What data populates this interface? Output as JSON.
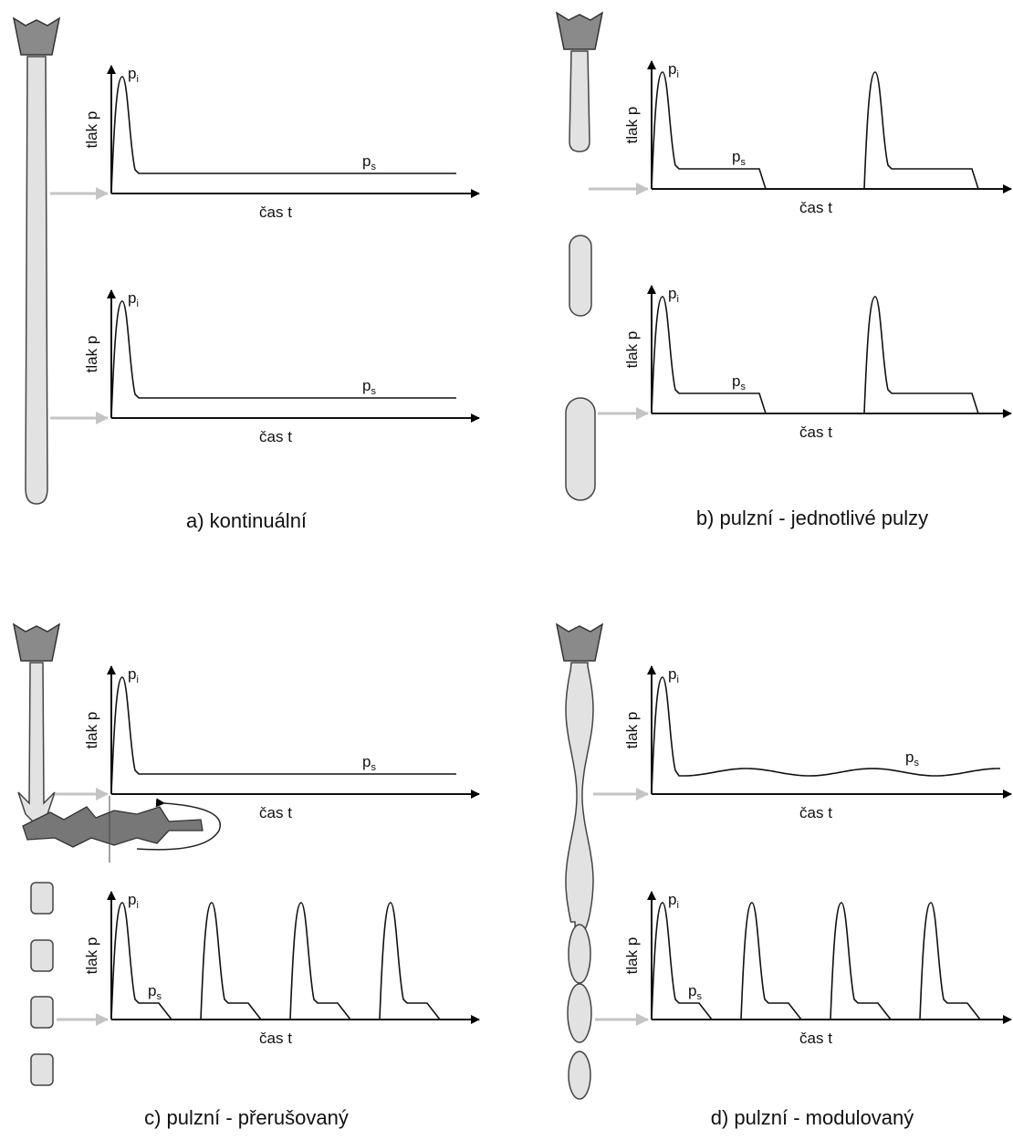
{
  "panels": [
    {
      "caption": "a) kontinuální",
      "plots": [
        {
          "y_label": "tlak p",
          "x_label": "čas t",
          "peak_label": {
            "base": "p",
            "sub": "i"
          },
          "steady_label": {
            "base": "p",
            "sub": "s"
          }
        },
        {
          "y_label": "tlak p",
          "x_label": "čas t",
          "peak_label": {
            "base": "p",
            "sub": "i"
          },
          "steady_label": {
            "base": "p",
            "sub": "s"
          }
        }
      ]
    },
    {
      "caption": "b) pulzní - jednotlivé pulzy",
      "plots": [
        {
          "y_label": "tlak p",
          "x_label": "čas t",
          "peak_label": {
            "base": "p",
            "sub": "i"
          },
          "steady_label": {
            "base": "p",
            "sub": "s"
          }
        },
        {
          "y_label": "tlak p",
          "x_label": "čas t",
          "peak_label": {
            "base": "p",
            "sub": "i"
          },
          "steady_label": {
            "base": "p",
            "sub": "s"
          }
        }
      ]
    },
    {
      "caption": "c) pulzní - přerušovaný",
      "plots": [
        {
          "y_label": "tlak p",
          "x_label": "čas t",
          "peak_label": {
            "base": "p",
            "sub": "i"
          },
          "steady_label": {
            "base": "p",
            "sub": "s"
          }
        },
        {
          "y_label": "tlak p",
          "x_label": "čas t",
          "peak_label": {
            "base": "p",
            "sub": "i"
          },
          "steady_label": {
            "base": "p",
            "sub": "s"
          }
        }
      ]
    },
    {
      "caption": "d) pulzní - modulovaný",
      "plots": [
        {
          "y_label": "tlak p",
          "x_label": "čas t",
          "peak_label": {
            "base": "p",
            "sub": "i"
          },
          "steady_label": {
            "base": "p",
            "sub": "s"
          }
        },
        {
          "y_label": "tlak p",
          "x_label": "čas t",
          "peak_label": {
            "base": "p",
            "sub": "i"
          },
          "steady_label": {
            "base": "p",
            "sub": "s"
          }
        }
      ]
    }
  ]
}
